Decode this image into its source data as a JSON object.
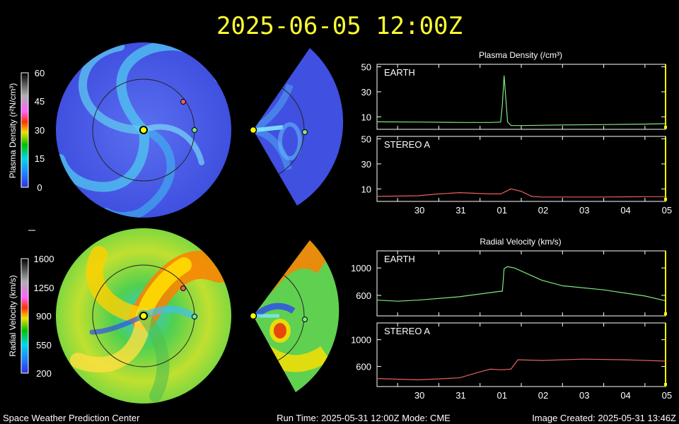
{
  "header": {
    "title": "2025-06-05 12:00Z"
  },
  "footer": {
    "left": "Space Weather Prediction Center",
    "center": "Run Time: 2025-05-31 12:00Z  Mode: CME",
    "right": "Image Created: 2025-05-31 13:46Z"
  },
  "colors": {
    "earth_line": "#7ee87e",
    "stereo_line": "#e86060",
    "earth_marker": "#7ee87e",
    "stereo_marker": "#e86060",
    "sun_marker": "#ffff00",
    "title": "#ffff33",
    "panel_border": "#ffffff",
    "current_time_marker": "#ffff00"
  },
  "colorbars": {
    "density": {
      "label": "Plasma Density (r²N/cm³)",
      "ticks": [
        "60",
        "45",
        "30",
        "15",
        "0"
      ],
      "range": [
        0,
        60
      ]
    },
    "velocity": {
      "label": "Radial Velocity (km/s)",
      "ticks": [
        "1600",
        "1250",
        "900",
        "550",
        "200"
      ],
      "range": [
        200,
        1600
      ]
    }
  },
  "chart_data": [
    {
      "type": "line",
      "title": "Plasma Density (/cm³)",
      "panel": "EARTH",
      "x": [
        "2025-05-29 12:00",
        "2025-05-30 12:00",
        "2025-05-31 12:00",
        "2025-06-01 06:00",
        "2025-06-01 12:00",
        "2025-06-01 13:00",
        "2025-06-01 14:00",
        "2025-06-01 15:00",
        "2025-06-01 16:00",
        "2025-06-01 18:00",
        "2025-06-02 00:00",
        "2025-06-03 00:00",
        "2025-06-04 00:00",
        "2025-06-05 00:00",
        "2025-06-05 12:00"
      ],
      "values": [
        6,
        5.8,
        5.5,
        5.5,
        5.8,
        20,
        43,
        25,
        6,
        3,
        3,
        3.5,
        3.8,
        4.2,
        4.5
      ],
      "ylim": [
        0,
        52
      ],
      "yticks": [
        "50",
        "30",
        "10"
      ],
      "xticks": [
        "30",
        "31",
        "01",
        "02",
        "03",
        "04",
        "05"
      ]
    },
    {
      "type": "line",
      "title": "",
      "panel": "STEREO A",
      "x": [
        "2025-05-29 12:00",
        "2025-05-30 12:00",
        "2025-05-31 00:00",
        "2025-05-31 12:00",
        "2025-06-01 06:00",
        "2025-06-01 12:00",
        "2025-06-01 18:00",
        "2025-06-02 00:00",
        "2025-06-02 06:00",
        "2025-06-02 12:00",
        "2025-06-03 00:00",
        "2025-06-04 00:00",
        "2025-06-05 00:00",
        "2025-06-05 12:00"
      ],
      "values": [
        4,
        4.5,
        6,
        7,
        6,
        6,
        10,
        8,
        4,
        3.5,
        3.5,
        3.5,
        3.8,
        3.8
      ],
      "ylim": [
        0,
        52
      ],
      "yticks": [
        "50",
        "30",
        "10"
      ],
      "xticks": [
        "30",
        "31",
        "01",
        "02",
        "03",
        "04",
        "05"
      ]
    },
    {
      "type": "line",
      "title": "Radial Velocity (km/s)",
      "panel": "EARTH",
      "x": [
        "2025-05-29 12:00",
        "2025-05-30 00:00",
        "2025-05-30 12:00",
        "2025-05-31 12:00",
        "2025-06-01 12:00",
        "2025-06-01 13:00",
        "2025-06-01 14:00",
        "2025-06-01 16:00",
        "2025-06-01 20:00",
        "2025-06-02 12:00",
        "2025-06-03 00:00",
        "2025-06-04 00:00",
        "2025-06-05 00:00",
        "2025-06-05 12:00"
      ],
      "values": [
        530,
        515,
        530,
        580,
        660,
        660,
        990,
        1020,
        1000,
        820,
        740,
        680,
        590,
        520
      ],
      "ylim": [
        300,
        1250
      ],
      "yticks": [
        "1000",
        "600"
      ],
      "xticks": [
        "30",
        "31",
        "01",
        "02",
        "03",
        "04",
        "05"
      ]
    },
    {
      "type": "line",
      "title": "",
      "panel": "STEREO A",
      "x": [
        "2025-05-29 12:00",
        "2025-05-30 12:00",
        "2025-05-31 12:00",
        "2025-06-01 00:00",
        "2025-06-01 06:00",
        "2025-06-01 12:00",
        "2025-06-01 18:00",
        "2025-06-01 22:00",
        "2025-06-02 12:00",
        "2025-06-03 12:00",
        "2025-06-04 12:00",
        "2025-06-05 12:00"
      ],
      "values": [
        420,
        400,
        430,
        520,
        560,
        550,
        560,
        700,
        690,
        710,
        700,
        680
      ],
      "ylim": [
        300,
        1250
      ],
      "yticks": [
        "1000",
        "600"
      ],
      "xticks": [
        "30",
        "31",
        "01",
        "02",
        "03",
        "04",
        "05"
      ]
    }
  ]
}
